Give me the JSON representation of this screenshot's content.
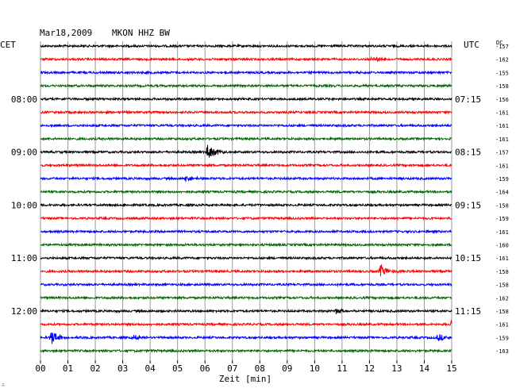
{
  "header": {
    "date": "Mar18,2009",
    "station": "MKON HHZ BW",
    "left_tz": "CET",
    "right_tz": "UTC",
    "dc_label": "DC"
  },
  "footer": {
    "xlabel": "Zeit [min]",
    "corner_mark": "∴"
  },
  "chart_data": {
    "type": "line",
    "title": "Mar18,2009   MKON HHZ BW",
    "xlabel": "Zeit [min]",
    "xlim": [
      0,
      15
    ],
    "xticks": [
      "00",
      "01",
      "02",
      "03",
      "04",
      "05",
      "06",
      "07",
      "08",
      "09",
      "10",
      "11",
      "12",
      "13",
      "14",
      "15"
    ],
    "grid": true,
    "colors": [
      "#000000",
      "#ff0000",
      "#0000ff",
      "#006600"
    ],
    "left_time_labels": [
      {
        "trace": 4,
        "label": "08:00"
      },
      {
        "trace": 8,
        "label": "09:00"
      },
      {
        "trace": 12,
        "label": "10:00"
      },
      {
        "trace": 16,
        "label": "11:00"
      },
      {
        "trace": 20,
        "label": "12:00"
      }
    ],
    "right_time_labels": [
      {
        "trace": 4,
        "label": "07:15"
      },
      {
        "trace": 8,
        "label": "08:15"
      },
      {
        "trace": 12,
        "label": "09:15"
      },
      {
        "trace": 16,
        "label": "10:15"
      },
      {
        "trace": 20,
        "label": "11:15"
      }
    ],
    "dc_offsets": [
      "-157",
      "-162",
      "-155",
      "-158",
      "-156",
      "-161",
      "-161",
      "-161",
      "-157",
      "-161",
      "-159",
      "-164",
      "-158",
      "-159",
      "-161",
      "-160",
      "-161",
      "-158",
      "-158",
      "-162",
      "-158",
      "-161",
      "-159",
      "-163"
    ],
    "events": [
      {
        "trace": 1,
        "minute": 12.1,
        "amp": 0.45
      },
      {
        "trace": 8,
        "minute": 6.1,
        "amp": 1.0
      },
      {
        "trace": 10,
        "minute": 5.3,
        "amp": 0.4
      },
      {
        "trace": 17,
        "minute": 12.4,
        "amp": 0.9
      },
      {
        "trace": 20,
        "minute": 10.8,
        "amp": 0.4
      },
      {
        "trace": 21,
        "minute": 15.0,
        "amp": 0.8
      },
      {
        "trace": 22,
        "minute": 0.4,
        "amp": 1.0
      },
      {
        "trace": 22,
        "minute": 3.4,
        "amp": 0.4
      },
      {
        "trace": 22,
        "minute": 14.5,
        "amp": 0.5
      }
    ]
  }
}
